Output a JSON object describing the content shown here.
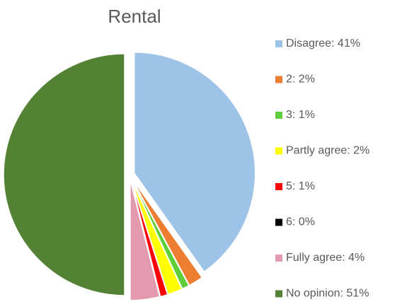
{
  "chart_data": {
    "type": "pie",
    "title": "Rental",
    "categories": [
      "Disagree: 41%",
      "2: 2%",
      "3: 1%",
      "Partly agree: 2%",
      "5: 1%",
      "6: 0%",
      "Fully agree: 4%",
      "No opinion: 51%"
    ],
    "values": [
      41,
      2,
      1,
      2,
      1,
      0,
      4,
      51
    ],
    "colors": [
      "#9dc3e6",
      "#ed7d31",
      "#5ece3b",
      "#ffff00",
      "#ff0000",
      "#000000",
      "#e39aae",
      "#548235"
    ],
    "legend": "right"
  }
}
